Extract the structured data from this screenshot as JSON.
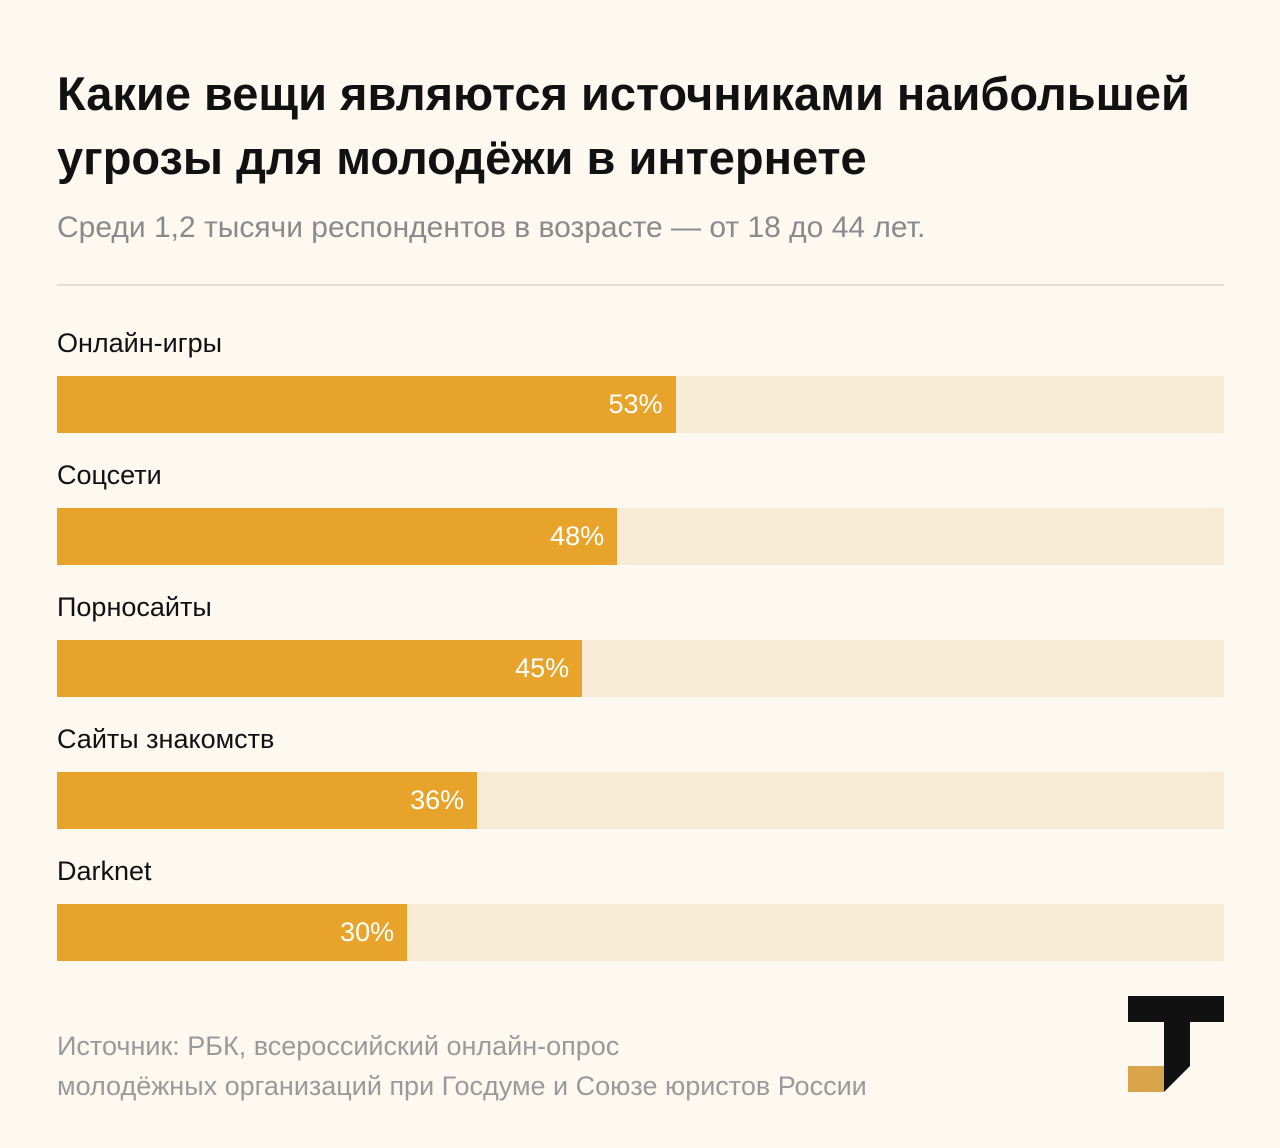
{
  "header": {
    "title": "Какие вещи являются источниками наибольшей угрозы для молодёжи в интернете",
    "subtitle": "Среди 1,2 тысячи респондентов в возрасте — от 18 до 44 лет."
  },
  "chart_data": {
    "type": "bar",
    "orientation": "horizontal",
    "categories": [
      "Онлайн-игры",
      "Соцсети",
      "Порносайты",
      "Сайты знакомств",
      "Darknet"
    ],
    "values": [
      53,
      48,
      45,
      36,
      30
    ],
    "value_labels": [
      "53%",
      "48%",
      "45%",
      "36%",
      "30%"
    ],
    "unit": "%",
    "xlim": [
      0,
      100
    ],
    "grid": false,
    "legend": false
  },
  "footer": {
    "source_line1": "Источник: РБК, всероссийский онлайн-опрос",
    "source_line2": "молодёжных организаций при Госдуме и Союзе юристов России"
  },
  "colors": {
    "background": "#fdf9f0",
    "bar_fill": "#e8a42a",
    "bar_track": "#f7ebd6",
    "logo_dark": "#111111",
    "logo_accent": "#d9a54a"
  },
  "logo": {
    "icon": "t-logo-icon"
  }
}
